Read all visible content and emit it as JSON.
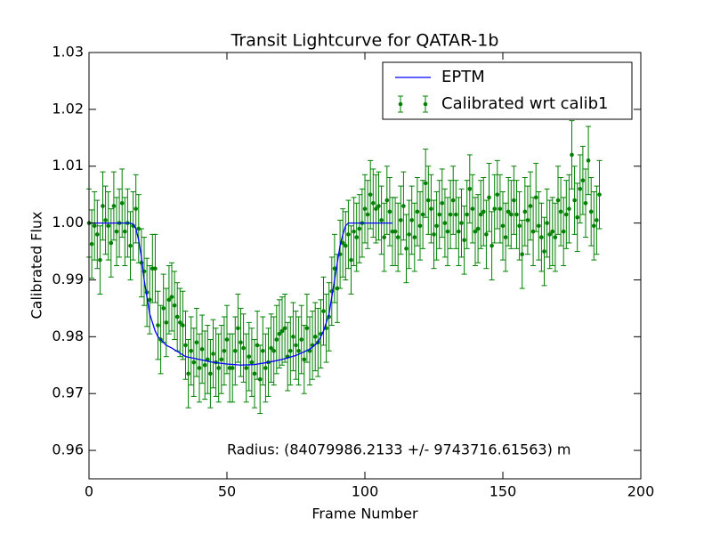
{
  "chart_data": {
    "type": "errorbar",
    "title": "Transit Lightcurve for QATAR-1b",
    "xlabel": "Frame Number",
    "ylabel": "Calibrated Flux",
    "annotation": "Radius: (84079986.2133 +/- 9743716.61563) m",
    "xlim": [
      0,
      200
    ],
    "xticks": [
      0,
      50,
      100,
      150,
      200
    ],
    "ylim": [
      0.955,
      1.03
    ],
    "yticks": [
      0.96,
      0.97,
      0.98,
      0.99,
      {
        "value": 1,
        "label": "1.00"
      },
      1.01,
      1.02,
      1.03
    ],
    "legend": "upper right",
    "series": [
      {
        "name": "EPTM",
        "kind": "line",
        "color": "#0000ff",
        "x": [
          0,
          15,
          16,
          17,
          18,
          19,
          20,
          21,
          22,
          23,
          24,
          25,
          26,
          28,
          30,
          35,
          40,
          45,
          50,
          55,
          60,
          65,
          70,
          75,
          80,
          83,
          85,
          87,
          88,
          89,
          90,
          91,
          92,
          93,
          94,
          95,
          100,
          110
        ],
        "values": [
          1.0,
          1.0,
          0.9998,
          0.999,
          0.997,
          0.994,
          0.99,
          0.987,
          0.984,
          0.9825,
          0.981,
          0.98,
          0.9795,
          0.9785,
          0.978,
          0.9765,
          0.976,
          0.9755,
          0.9752,
          0.975,
          0.9751,
          0.9755,
          0.976,
          0.9767,
          0.9778,
          0.979,
          0.981,
          0.984,
          0.987,
          0.99,
          0.993,
          0.996,
          0.998,
          0.9995,
          1.0,
          1.0,
          1.0,
          1.0
        ]
      },
      {
        "name": "Calibrated wrt calib1",
        "kind": "errorbar",
        "color": "#008000",
        "error": 0.006,
        "x": [
          0,
          1,
          2,
          3,
          4,
          5,
          6,
          7,
          8,
          9,
          10,
          11,
          12,
          13,
          14,
          15,
          16,
          17,
          18,
          19,
          20,
          21,
          22,
          23,
          24,
          25,
          26,
          27,
          28,
          29,
          30,
          31,
          32,
          33,
          34,
          35,
          36,
          37,
          38,
          39,
          40,
          41,
          42,
          43,
          44,
          45,
          46,
          47,
          48,
          49,
          50,
          51,
          52,
          53,
          54,
          55,
          56,
          57,
          58,
          59,
          60,
          61,
          62,
          63,
          64,
          65,
          66,
          67,
          68,
          69,
          70,
          71,
          72,
          73,
          74,
          75,
          76,
          77,
          78,
          79,
          80,
          81,
          82,
          83,
          84,
          85,
          86,
          87,
          88,
          89,
          90,
          91,
          92,
          93,
          94,
          95,
          96,
          97,
          98,
          99,
          100,
          101,
          102,
          103,
          104,
          105,
          106,
          107,
          108,
          109,
          110,
          111,
          112,
          113,
          114,
          115,
          116,
          117,
          118,
          119,
          120,
          121,
          122,
          123,
          124,
          125,
          126,
          127,
          128,
          129,
          130,
          131,
          132,
          133,
          134,
          135,
          136,
          137,
          138,
          139,
          140,
          141,
          142,
          143,
          144,
          145,
          146,
          147,
          148,
          149,
          150,
          151,
          152,
          153,
          154,
          155,
          156,
          157,
          158,
          159,
          160,
          161,
          162,
          163,
          164,
          165,
          166,
          167,
          168,
          169,
          170,
          171,
          172,
          173,
          174,
          175,
          176,
          177,
          178,
          179,
          180,
          181,
          182,
          183,
          184,
          185
        ],
        "values": [
          1.0,
          0.9963,
          0.9995,
          0.998,
          0.9935,
          1.003,
          1.0005,
          0.9995,
          0.9965,
          1.003,
          0.9985,
          1.0,
          1.0035,
          0.9985,
          1.0,
          0.996,
          0.9995,
          1.0025,
          0.999,
          0.993,
          0.9915,
          0.9878,
          0.9865,
          0.992,
          0.992,
          0.982,
          0.9795,
          0.985,
          0.9825,
          0.9865,
          0.987,
          0.9855,
          0.9835,
          0.9825,
          0.982,
          0.9785,
          0.9735,
          0.9775,
          0.9755,
          0.979,
          0.9745,
          0.9778,
          0.975,
          0.976,
          0.9735,
          0.977,
          0.9755,
          0.9745,
          0.976,
          0.9775,
          0.9795,
          0.9745,
          0.9745,
          0.9775,
          0.9815,
          0.979,
          0.978,
          0.9745,
          0.9765,
          0.9755,
          0.9735,
          0.9785,
          0.9725,
          0.9775,
          0.9745,
          0.9755,
          0.978,
          0.9775,
          0.9795,
          0.9805,
          0.981,
          0.9815,
          0.9765,
          0.9775,
          0.98,
          0.9785,
          0.9775,
          0.9795,
          0.976,
          0.9815,
          0.9775,
          0.9785,
          0.98,
          0.979,
          0.9805,
          0.9845,
          0.9815,
          0.9835,
          0.988,
          0.992,
          0.9885,
          0.9945,
          0.9965,
          0.996,
          0.998,
          0.9935,
          0.9985,
          0.9975,
          0.999,
          1.0,
          1.0025,
          1.0015,
          1.005,
          1.0035,
          1.0025,
          1.003,
          1.0005,
          0.9975,
          1.004,
          1.002,
          0.9985,
          0.9985,
          0.9975,
          1.0005,
          1.003,
          0.9955,
          0.998,
          1.0005,
          0.9975,
          1.002,
          0.9995,
          1.0015,
          1.007,
          1.004,
          1.0025,
          0.998,
          0.9995,
          1.0015,
          1.0035,
          1.0,
          0.9985,
          1.0015,
          1.004,
          1.0015,
          0.9985,
          1.0,
          0.997,
          1.0015,
          1.006,
          1.0025,
          0.9985,
          0.999,
          1.0015,
          1.002,
          0.998,
          1.0045,
          0.996,
          1.0025,
          1.005,
          1.0025,
          0.9995,
          0.9975,
          1.002,
          1.0015,
          1.004,
          1.0015,
          0.9995,
          0.9945,
          1.002,
          1.0005,
          1.003,
          0.9985,
          1.0045,
          0.9995,
          0.9975,
          0.995,
          1.0,
          0.998,
          0.9985,
          0.9975,
          1.004,
          1.002,
          0.9985,
          1.0015,
          1.0025,
          1.012,
          1.004,
          1.001,
          1.006,
          1.0075,
          1.0035,
          1.011,
          1.002,
          0.9995,
          1.0005,
          1.005
        ]
      }
    ]
  }
}
